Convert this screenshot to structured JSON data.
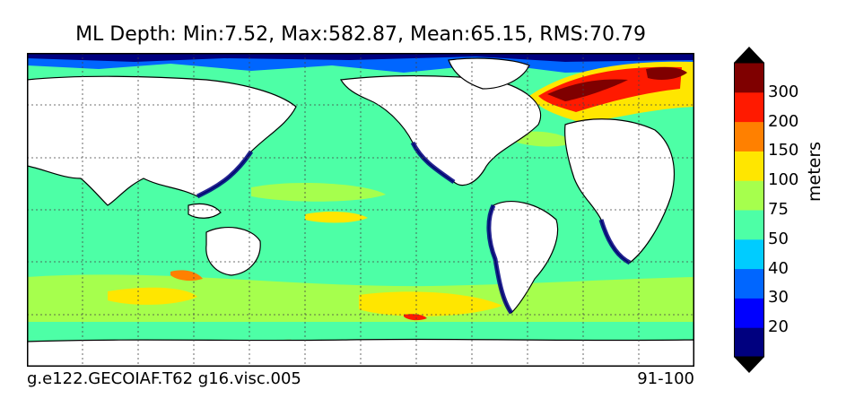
{
  "title": "ML Depth: Min:7.52, Max:582.87, Mean:65.15, RMS:70.79",
  "footer": {
    "left": "g.e122.GECOIAF.T62 g16.visc.005",
    "right": "91-100"
  },
  "colorbar": {
    "label": "meters",
    "levels": [
      "20",
      "30",
      "40",
      "50",
      "75",
      "100",
      "150",
      "200",
      "300"
    ],
    "colors": [
      "#00007f",
      "#0000ff",
      "#0066ff",
      "#00ccff",
      "#4dffa6",
      "#a6ff4d",
      "#ffe600",
      "#ff8000",
      "#ff1a00",
      "#7f0000"
    ]
  },
  "map_colors": {
    "land": "#ffffff",
    "ocean_base": "#4dffa6",
    "shelf_deep": "#00007f",
    "shelf_mid": "#0066ff",
    "shelf_light": "#00ccff",
    "sub_mid": "#a6ff4d",
    "sub_high": "#ffe600",
    "sub_higher": "#ff8000",
    "very_high": "#ff1a00",
    "max": "#7f0000"
  }
}
